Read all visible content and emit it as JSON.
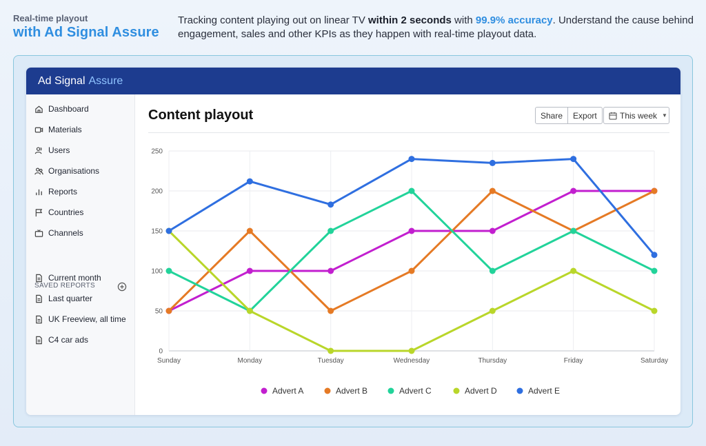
{
  "intro": {
    "tagline_small": "Real-time playout",
    "tagline_big": "with Ad Signal Assure",
    "desc_p1": "Tracking content playing out on linear TV ",
    "desc_b1": "within 2 seconds",
    "desc_p2": " with ",
    "desc_hl": "99.9% accuracy",
    "desc_p3": ". Understand the cause behind engagement, sales and other KPIs as they happen with real-time playout data."
  },
  "app": {
    "brand": "Ad Signal",
    "brand_accent": "Assure",
    "header_color": "#1d3c8f"
  },
  "sidebar": {
    "items": [
      {
        "label": "Dashboard",
        "icon": "home-icon"
      },
      {
        "label": "Materials",
        "icon": "video-icon"
      },
      {
        "label": "Users",
        "icon": "user-icon"
      },
      {
        "label": "Organisations",
        "icon": "users-icon"
      },
      {
        "label": "Reports",
        "icon": "bar-chart-icon"
      },
      {
        "label": "Countries",
        "icon": "flag-icon"
      },
      {
        "label": "Channels",
        "icon": "tv-icon"
      }
    ],
    "saved_title": "SAVED REPORTS",
    "saved": [
      {
        "label": "Current month",
        "icon": "document-icon"
      },
      {
        "label": "Last quarter",
        "icon": "document-icon"
      },
      {
        "label": "UK Freeview, all time",
        "icon": "document-icon"
      },
      {
        "label": "C4 car ads",
        "icon": "document-icon"
      }
    ]
  },
  "main": {
    "title": "Content playout",
    "share_label": "Share",
    "export_label": "Export",
    "date_label": "This week"
  },
  "chart_data": {
    "type": "line",
    "categories": [
      "Sunday",
      "Monday",
      "Tuesday",
      "Wednesday",
      "Thursday",
      "Friday",
      "Saturday"
    ],
    "yticks": [
      0,
      50,
      100,
      150,
      200,
      250
    ],
    "ylim": [
      0,
      250
    ],
    "grid": true,
    "legend_position": "bottom",
    "series": [
      {
        "name": "Advert A",
        "color": "#c21fcf",
        "values": [
          50,
          100,
          100,
          150,
          150,
          200,
          200
        ]
      },
      {
        "name": "Advert B",
        "color": "#e57a25",
        "values": [
          50,
          150,
          50,
          100,
          200,
          150,
          200
        ]
      },
      {
        "name": "Advert C",
        "color": "#22d39a",
        "values": [
          100,
          50,
          150,
          200,
          100,
          150,
          100
        ]
      },
      {
        "name": "Advert D",
        "color": "#b9d62a",
        "values": [
          150,
          50,
          0,
          0,
          50,
          100,
          50
        ]
      },
      {
        "name": "Advert E",
        "color": "#2f6fe0",
        "values": [
          150,
          212,
          183,
          240,
          235,
          240,
          120
        ]
      }
    ]
  }
}
